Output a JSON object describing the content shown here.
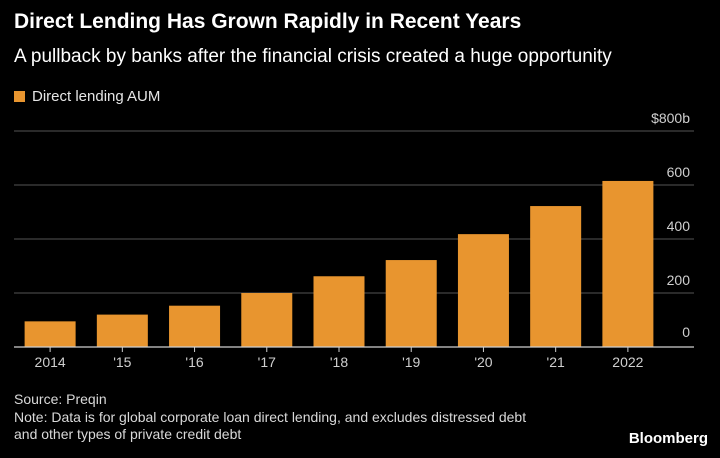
{
  "header": {
    "title": "Direct Lending Has Grown Rapidly in Recent Years",
    "subtitle": "A pullback by banks after the financial crisis created a huge opportunity"
  },
  "chart_data": {
    "type": "bar",
    "categories": [
      "2014",
      "'15",
      "'16",
      "'17",
      "'18",
      "'19",
      "'20",
      "'21",
      "2022"
    ],
    "series": [
      {
        "name": "Direct lending AUM",
        "values": [
          95,
          120,
          153,
          200,
          262,
          322,
          418,
          522,
          615
        ],
        "color": "#e8952f"
      }
    ],
    "ylim": [
      0,
      800
    ],
    "yticks": [
      0,
      200,
      400,
      600,
      800
    ],
    "ytick_labels": [
      "0",
      "200",
      "400",
      "600",
      "$800b"
    ],
    "xlabel": "",
    "ylabel": "",
    "grid": true,
    "legend_position": "top-left",
    "axis_side": "right"
  },
  "footer": {
    "source": "Source: Preqin",
    "note": "Note: Data is for global corporate loan direct lending, and excludes distressed debt and other types of private credit debt"
  },
  "brand": "Bloomberg",
  "colors": {
    "background": "#000000",
    "bar": "#e8952f",
    "gridline": "#555555",
    "axis": "#cfcfcf",
    "text": "#ffffff"
  }
}
